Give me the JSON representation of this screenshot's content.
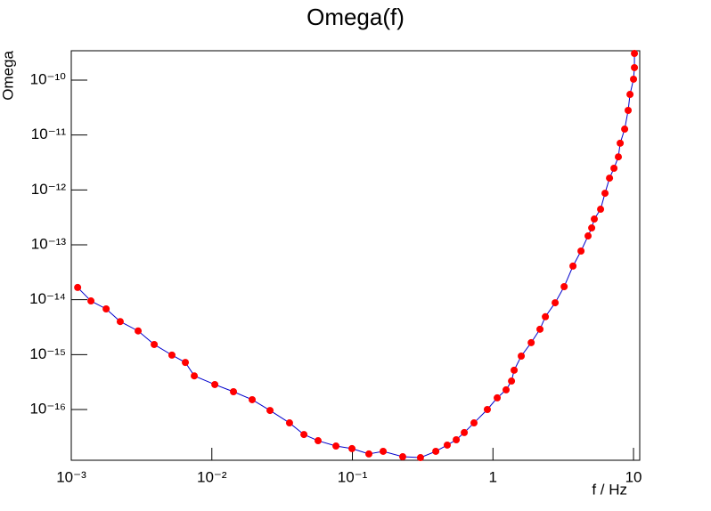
{
  "chart_data": {
    "type": "line",
    "title": "Omega(f)",
    "x_label": "f / Hz",
    "y_label": "Omega",
    "x_scale": "log",
    "y_scale": "log",
    "xlim": [
      0.001,
      11.07
    ],
    "ylim": [
      1.19e-17,
      3.43e-10
    ],
    "xticks": [
      {
        "value": 0.001,
        "label": "10⁻³"
      },
      {
        "value": 0.01,
        "label": "10⁻²"
      },
      {
        "value": 0.1,
        "label": "10⁻¹"
      },
      1,
      10
    ],
    "yticks": [
      {
        "value": 1e-16,
        "label": "10⁻¹⁶"
      },
      {
        "value": 1e-15,
        "label": "10⁻¹⁵"
      },
      {
        "value": 1e-14,
        "label": "10⁻¹⁴"
      },
      {
        "value": 1e-13,
        "label": "10⁻¹³"
      },
      {
        "value": 1e-12,
        "label": "10⁻¹²"
      },
      {
        "value": 1e-11,
        "label": "10⁻¹¹"
      },
      {
        "value": 1e-10,
        "label": "10⁻¹⁰"
      }
    ],
    "line_color": "#0000cc",
    "marker_color": "#ff0000",
    "x": [
      0.00111,
      0.00138,
      0.00177,
      0.00223,
      0.00299,
      0.00389,
      0.0052,
      0.00648,
      0.0075,
      0.0105,
      0.01425,
      0.01936,
      0.02594,
      0.0357,
      0.0452,
      0.057,
      0.0764,
      0.0993,
      0.131,
      0.1655,
      0.228,
      0.305,
      0.392,
      0.473,
      0.548,
      0.625,
      0.733,
      0.912,
      1.072,
      1.24,
      1.355,
      1.415,
      1.59,
      1.87,
      2.16,
      2.36,
      2.77,
      3.21,
      3.71,
      4.23,
      4.75,
      5.04,
      5.26,
      5.83,
      6.27,
      6.75,
      7.26,
      7.8,
      8.04,
      8.65,
      9.16,
      9.44,
      10.0,
      10.15,
      10.15
    ],
    "values": [
      1.67e-14,
      9.5e-15,
      6.8e-15,
      4e-15,
      2.7e-15,
      1.53e-15,
      9.8e-16,
      7.2e-16,
      4.1e-16,
      2.85e-16,
      2.11e-16,
      1.51e-16,
      9.6e-17,
      5.7e-17,
      3.5e-17,
      2.7e-17,
      2.16e-17,
      1.94e-17,
      1.55e-17,
      1.73e-17,
      1.38e-17,
      1.33e-17,
      1.73e-17,
      2.25e-17,
      2.81e-17,
      3.8e-17,
      5.7e-17,
      1e-16,
      1.63e-16,
      2.28e-16,
      3.3e-16,
      5.2e-16,
      9.4e-16,
      1.65e-15,
      2.9e-15,
      4.9e-15,
      8.8e-15,
      1.73e-14,
      4.1e-14,
      7.7e-14,
      1.45e-13,
      2.03e-13,
      2.95e-13,
      4.45e-13,
      8.7e-13,
      1.64e-12,
      2.48e-12,
      4e-12,
      7.1e-12,
      1.28e-11,
      2.81e-11,
      5.5e-11,
      1.04e-10,
      1.69e-10,
      3.06e-10
    ]
  }
}
